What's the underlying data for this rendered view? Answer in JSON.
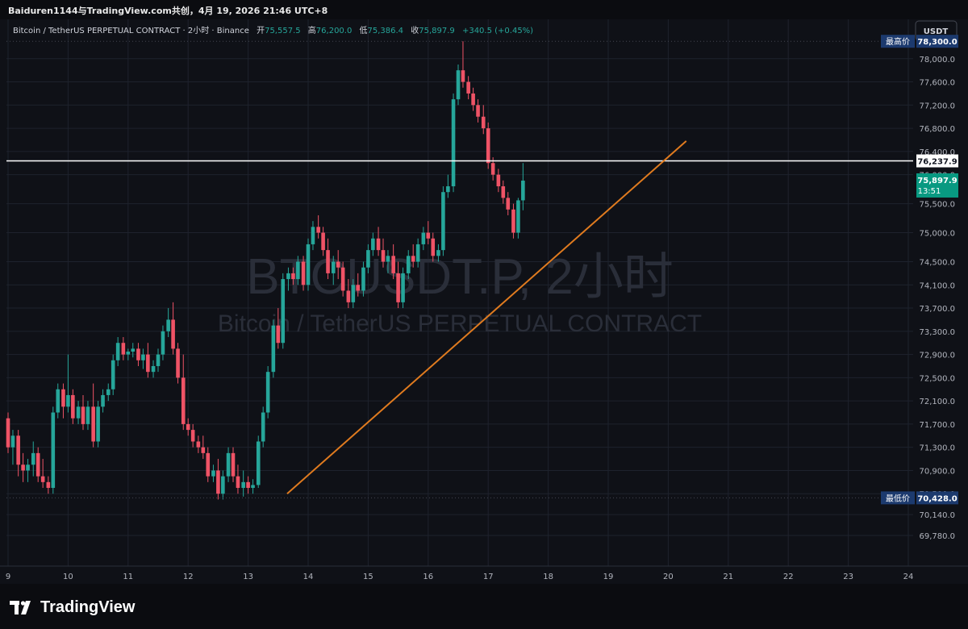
{
  "window": {
    "title": "Baiduren1144与TradingView.com共创，4月 19, 2026 21:46 UTC+8"
  },
  "header": {
    "symbol": "Bitcoin / TetherUS PERPETUAL CONTRACT · 2小时 · Binance",
    "open_label": "开",
    "open": "75,557.5",
    "high_label": "高",
    "high": "76,200.0",
    "low_label": "低",
    "low": "75,386.4",
    "close_label": "收",
    "close": "75,897.9",
    "change": "+340.5 (+0.45%)",
    "currency_button": "USDT"
  },
  "watermark": {
    "line1": "BTCUSDT.P, 2小时",
    "line2": "Bitcoin / TetherUS PERPETUAL CONTRACT"
  },
  "price_scale": {
    "labels": [
      "78,400.0",
      "78,000.0",
      "77,600.0",
      "77,200.0",
      "76,800.0",
      "76,400.0",
      "76,000.0",
      "75,500.0",
      "75,000.0",
      "74,500.0",
      "74,100.0",
      "73,700.0",
      "73,300.0",
      "72,900.0",
      "72,500.0",
      "72,100.0",
      "71,700.0",
      "71,300.0",
      "70,900.0",
      "70,500.0",
      "70,140.0",
      "69,780.0"
    ],
    "highest_label": "最高价",
    "highest_value": "78,300.0",
    "lowest_label": "最低价",
    "lowest_value": "70,428.0",
    "hline_value": "76,237.9",
    "current_price": "75,897.9",
    "countdown": "13:51"
  },
  "time_axis": {
    "labels": [
      "9",
      "10",
      "11",
      "12",
      "13",
      "14",
      "15",
      "16",
      "17",
      "18",
      "19",
      "20",
      "21",
      "22",
      "23",
      "24"
    ]
  },
  "colors": {
    "background": "#0f1117",
    "up": "#26a69a",
    "down": "#ef5366",
    "trendline": "#e07b1f",
    "hline": "#ffffff",
    "accent": "#1e53e5",
    "price_badge": "#089981",
    "extreme_badge": "#1c3a6e"
  },
  "drawings": {
    "trendline": {
      "from": [
        "13.65",
        70500
      ],
      "to": [
        "20.3",
        76580
      ]
    },
    "horizontal_line": 76237.9
  },
  "footer": {
    "brand": "TradingView",
    "logo_icon": "tradingview-logo-icon"
  },
  "chart_data": {
    "type": "candlestick",
    "timeframe": "2小时",
    "x_unit": "day of month (April 2026)",
    "ylim": [
      69600,
      78500
    ],
    "xlim": [
      9,
      24.2
    ],
    "candles": [
      [
        9.0,
        71800,
        71900,
        71200,
        71300
      ],
      [
        9.08,
        71300,
        71600,
        71000,
        71500
      ],
      [
        9.17,
        71500,
        71600,
        70800,
        71000
      ],
      [
        9.25,
        71000,
        71200,
        70700,
        70900
      ],
      [
        9.33,
        70900,
        71100,
        70700,
        71000
      ],
      [
        9.42,
        71000,
        71400,
        70800,
        71200
      ],
      [
        9.5,
        71200,
        71300,
        70700,
        70800
      ],
      [
        9.58,
        70800,
        71100,
        70600,
        70700
      ],
      [
        9.67,
        70700,
        70800,
        70500,
        70600
      ],
      [
        9.75,
        70600,
        72000,
        70500,
        71900
      ],
      [
        9.83,
        71900,
        72400,
        71800,
        72300
      ],
      [
        9.92,
        72300,
        72400,
        71800,
        72000
      ],
      [
        10.0,
        72000,
        72900,
        71900,
        72200
      ],
      [
        10.08,
        72200,
        72300,
        71700,
        71800
      ],
      [
        10.17,
        71800,
        72100,
        71700,
        72000
      ],
      [
        10.25,
        72000,
        72200,
        71600,
        71700
      ],
      [
        10.33,
        71700,
        72100,
        71600,
        72000
      ],
      [
        10.42,
        72000,
        72400,
        71300,
        71400
      ],
      [
        10.5,
        71400,
        72100,
        71300,
        72000
      ],
      [
        10.58,
        72000,
        72300,
        71900,
        72200
      ],
      [
        10.67,
        72200,
        72400,
        72100,
        72300
      ],
      [
        10.75,
        72300,
        72900,
        72200,
        72800
      ],
      [
        10.83,
        72800,
        73200,
        72700,
        73100
      ],
      [
        10.92,
        73100,
        73200,
        72800,
        72900
      ],
      [
        11.0,
        72900,
        73000,
        72800,
        72950
      ],
      [
        11.08,
        72950,
        73100,
        72850,
        73000
      ],
      [
        11.17,
        73000,
        73100,
        72700,
        72800
      ],
      [
        11.25,
        72800,
        73000,
        72650,
        72900
      ],
      [
        11.33,
        72900,
        73100,
        72500,
        72600
      ],
      [
        11.42,
        72600,
        72800,
        72500,
        72700
      ],
      [
        11.5,
        72700,
        73000,
        72600,
        72900
      ],
      [
        11.58,
        72900,
        73400,
        72800,
        73300
      ],
      [
        11.67,
        73300,
        73700,
        73200,
        73500
      ],
      [
        11.75,
        73500,
        73800,
        72900,
        73000
      ],
      [
        11.83,
        73000,
        73100,
        72400,
        72500
      ],
      [
        11.92,
        72500,
        72900,
        71600,
        71700
      ],
      [
        12.0,
        71700,
        71800,
        71500,
        71600
      ],
      [
        12.08,
        71600,
        71700,
        71300,
        71400
      ],
      [
        12.17,
        71400,
        71500,
        71200,
        71300
      ],
      [
        12.25,
        71300,
        71500,
        71100,
        71200
      ],
      [
        12.33,
        71200,
        71300,
        70700,
        70800
      ],
      [
        12.42,
        70800,
        71000,
        70700,
        70900
      ],
      [
        12.5,
        70900,
        71100,
        70400,
        70500
      ],
      [
        12.58,
        70500,
        70900,
        70400,
        70800
      ],
      [
        12.67,
        70800,
        71300,
        70700,
        71200
      ],
      [
        12.75,
        71200,
        71300,
        70700,
        70800
      ],
      [
        12.83,
        70800,
        71000,
        70500,
        70600
      ],
      [
        12.92,
        70600,
        70900,
        70450,
        70700
      ],
      [
        13.0,
        70700,
        70800,
        70500,
        70600
      ],
      [
        13.08,
        70600,
        70750,
        70500,
        70650
      ],
      [
        13.17,
        70650,
        71500,
        70600,
        71400
      ],
      [
        13.25,
        71400,
        72000,
        71300,
        71900
      ],
      [
        13.33,
        71900,
        72700,
        71800,
        72600
      ],
      [
        13.42,
        72600,
        73500,
        72500,
        73400
      ],
      [
        13.5,
        73400,
        73700,
        73000,
        73100
      ],
      [
        13.58,
        73100,
        74300,
        73000,
        74200
      ],
      [
        13.67,
        74200,
        74400,
        74000,
        74300
      ],
      [
        13.75,
        74300,
        74400,
        74100,
        74200
      ],
      [
        13.83,
        74200,
        74600,
        74100,
        74500
      ],
      [
        13.92,
        74500,
        74600,
        74000,
        74100
      ],
      [
        14.0,
        74100,
        74900,
        74000,
        74800
      ],
      [
        14.08,
        74800,
        75200,
        74700,
        75100
      ],
      [
        14.17,
        75100,
        75300,
        74900,
        75000
      ],
      [
        14.25,
        75000,
        75100,
        74600,
        74700
      ],
      [
        14.33,
        74700,
        74900,
        74200,
        74300
      ],
      [
        14.42,
        74300,
        74600,
        74100,
        74500
      ],
      [
        14.5,
        74500,
        74700,
        74200,
        74400
      ],
      [
        14.58,
        74400,
        74500,
        73900,
        74000
      ],
      [
        14.67,
        74000,
        74200,
        73700,
        73800
      ],
      [
        14.75,
        73800,
        74200,
        73700,
        74100
      ],
      [
        14.83,
        74100,
        74300,
        73900,
        74000
      ],
      [
        14.92,
        74000,
        74500,
        73900,
        74400
      ],
      [
        15.0,
        74400,
        74800,
        74300,
        74700
      ],
      [
        15.08,
        74700,
        75000,
        74600,
        74900
      ],
      [
        15.17,
        74900,
        75100,
        74600,
        74700
      ],
      [
        15.25,
        74700,
        74900,
        74400,
        74500
      ],
      [
        15.33,
        74500,
        74700,
        74300,
        74600
      ],
      [
        15.42,
        74600,
        74800,
        74200,
        74300
      ],
      [
        15.5,
        74300,
        74500,
        73700,
        73800
      ],
      [
        15.58,
        73800,
        74400,
        73700,
        74300
      ],
      [
        15.67,
        74300,
        74700,
        74200,
        74600
      ],
      [
        15.75,
        74600,
        74800,
        74400,
        74500
      ],
      [
        15.83,
        74500,
        74900,
        74400,
        74800
      ],
      [
        15.92,
        74800,
        75100,
        74700,
        75000
      ],
      [
        16.0,
        75000,
        75200,
        74800,
        74900
      ],
      [
        16.08,
        74900,
        75000,
        74500,
        74600
      ],
      [
        16.17,
        74600,
        74800,
        74500,
        74700
      ],
      [
        16.25,
        74700,
        75800,
        74600,
        75700
      ],
      [
        16.33,
        75700,
        76000,
        75600,
        75800
      ],
      [
        16.42,
        75800,
        77400,
        75700,
        77300
      ],
      [
        16.5,
        77300,
        77900,
        77200,
        77800
      ],
      [
        16.58,
        77800,
        78300,
        77500,
        77600
      ],
      [
        16.67,
        77600,
        77700,
        77300,
        77400
      ],
      [
        16.75,
        77400,
        77500,
        77100,
        77200
      ],
      [
        16.83,
        77200,
        77300,
        76900,
        77000
      ],
      [
        16.92,
        77000,
        77200,
        76700,
        76800
      ],
      [
        17.0,
        76800,
        76900,
        76100,
        76200
      ],
      [
        17.08,
        76200,
        76300,
        75900,
        76000
      ],
      [
        17.17,
        76000,
        76100,
        75700,
        75800
      ],
      [
        17.25,
        75800,
        75900,
        75500,
        75600
      ],
      [
        17.33,
        75600,
        75700,
        75300,
        75400
      ],
      [
        17.42,
        75400,
        75500,
        74900,
        75000
      ],
      [
        17.5,
        75000,
        75600,
        74900,
        75557.5
      ],
      [
        17.58,
        75557.5,
        76200,
        75386.4,
        75897.9
      ]
    ]
  }
}
